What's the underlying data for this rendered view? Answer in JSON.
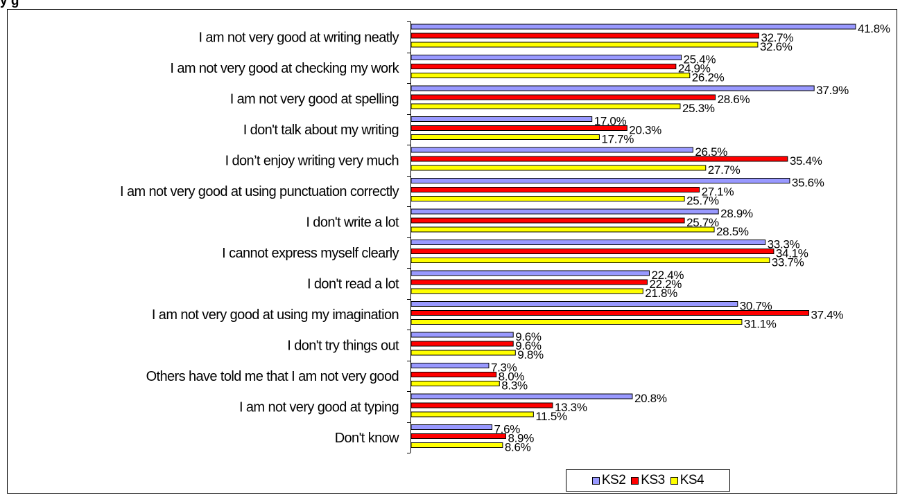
{
  "title_fragment": "y g",
  "chart_data": {
    "type": "bar",
    "orientation": "horizontal",
    "categories": [
      "I am not very good at writing neatly",
      "I am not very good at checking my work",
      "I am not very good at spelling",
      "I don't talk about my writing",
      "I don’t enjoy writing very much",
      "I am not very good at using punctuation correctly",
      "I don't write a lot",
      "I cannot express myself clearly",
      "I don't read a lot",
      "I am not very good at using my imagination",
      "I don't try things out",
      "Others have told me that I am not very good",
      "I am not very good at typing",
      "Don't know"
    ],
    "series": [
      {
        "name": "KS2",
        "color": "#9999ff",
        "values": [
          41.8,
          25.4,
          37.9,
          17.0,
          26.5,
          35.6,
          28.9,
          33.3,
          22.4,
          30.7,
          9.6,
          7.3,
          20.8,
          7.6
        ]
      },
      {
        "name": "KS3",
        "color": "#ff0000",
        "values": [
          32.7,
          24.9,
          28.6,
          20.3,
          35.4,
          27.1,
          25.7,
          34.1,
          22.2,
          37.4,
          9.6,
          8.0,
          13.3,
          8.9
        ]
      },
      {
        "name": "KS4",
        "color": "#ffff00",
        "values": [
          32.6,
          26.2,
          25.3,
          17.7,
          27.7,
          25.7,
          28.5,
          33.7,
          21.8,
          31.1,
          9.8,
          8.3,
          11.5,
          8.6
        ]
      }
    ],
    "value_suffix": "%",
    "xlim": [
      0,
      41.8
    ],
    "legend": "bottom",
    "grid": false
  }
}
